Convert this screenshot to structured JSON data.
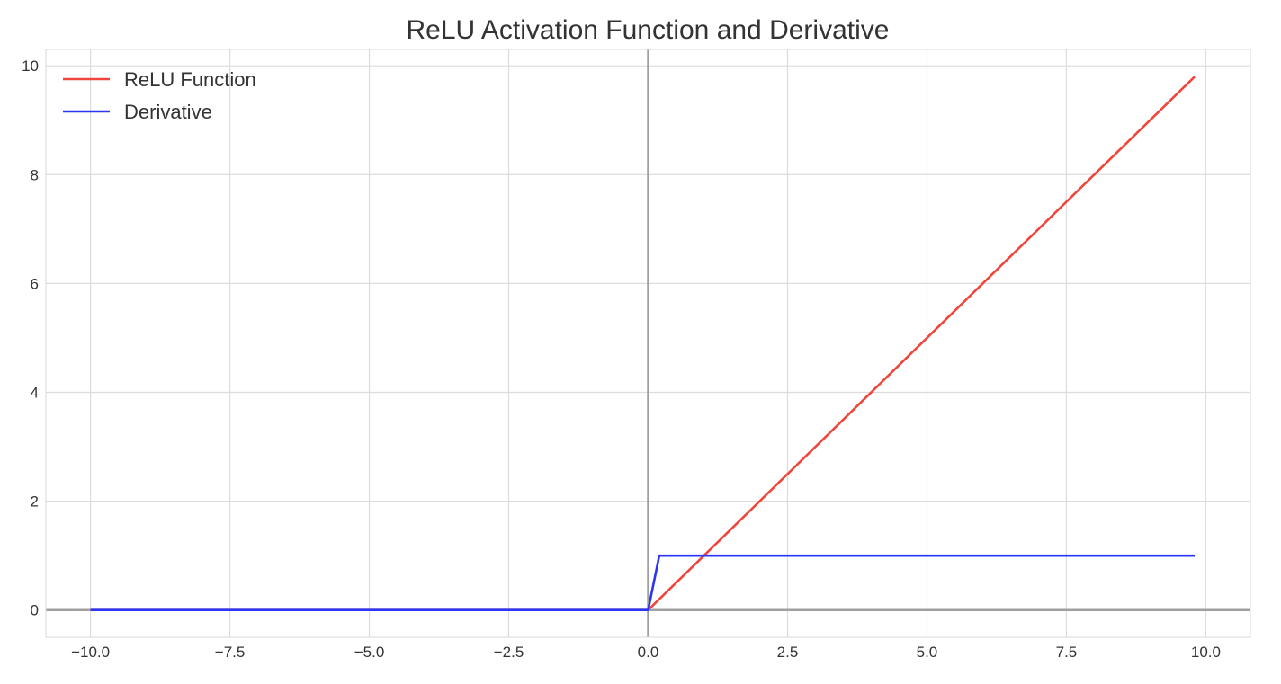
{
  "chart_data": {
    "type": "line",
    "title": "ReLU Activation Function and Derivative",
    "xlabel": "",
    "ylabel": "",
    "xlim": [
      -10.8,
      10.8
    ],
    "ylim": [
      -0.5,
      10.3
    ],
    "xticks": [
      -10.0,
      -7.5,
      -5.0,
      -2.5,
      0.0,
      2.5,
      5.0,
      7.5,
      10.0
    ],
    "xtick_labels": [
      "−10.0",
      "−7.5",
      "−5.0",
      "−2.5",
      "0.0",
      "2.5",
      "5.0",
      "7.5",
      "10.0"
    ],
    "yticks": [
      0,
      2,
      4,
      6,
      8,
      10
    ],
    "ytick_labels": [
      "0",
      "2",
      "4",
      "6",
      "8",
      "10"
    ],
    "grid": true,
    "reference_lines": {
      "x": 0,
      "y": 0,
      "color": "#a0a0a0"
    },
    "legend": {
      "placement": "top-left"
    },
    "series": [
      {
        "name": "ReLU Function",
        "color": "#f0453a",
        "x": [
          -10.0,
          0.0,
          9.8
        ],
        "y": [
          0.0,
          0.0,
          9.8
        ]
      },
      {
        "name": "Derivative",
        "color": "#2a35f5",
        "x": [
          -10.0,
          0.0,
          0.2,
          9.8
        ],
        "y": [
          0.0,
          0.0,
          1.0,
          1.0
        ]
      }
    ]
  }
}
